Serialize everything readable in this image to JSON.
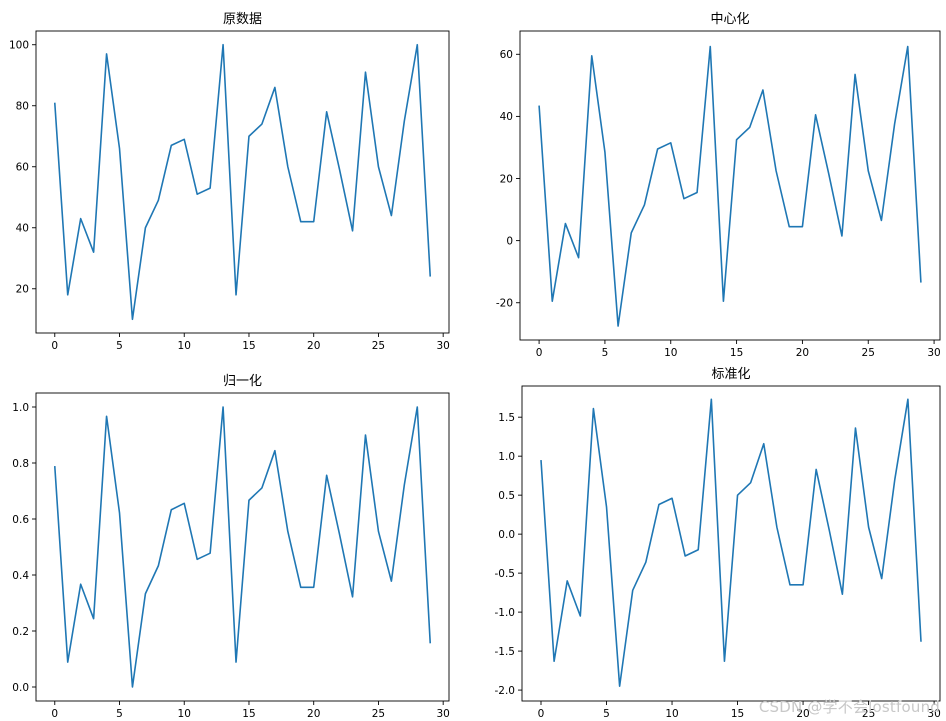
{
  "figure": {
    "background": "#ffffff",
    "line_color": "#1f77b4"
  },
  "watermark": "CSDN @学不会lostfound",
  "chart_data": [
    {
      "type": "line",
      "title": "原数据",
      "xlabel": "",
      "ylabel": "",
      "xlim": [
        -1.45,
        30.45
      ],
      "ylim": [
        5.5,
        104.5
      ],
      "xticks": [
        0,
        5,
        10,
        15,
        20,
        25,
        30
      ],
      "yticks": [
        20,
        40,
        60,
        80,
        100
      ],
      "grid": false,
      "series": [
        {
          "color": "#1f77b4",
          "x": [
            0,
            1,
            2,
            3,
            4,
            5,
            6,
            7,
            8,
            9,
            10,
            11,
            12,
            13,
            14,
            15,
            16,
            17,
            18,
            19,
            20,
            21,
            22,
            23,
            24,
            25,
            26,
            27,
            28,
            29
          ],
          "y": [
            81,
            18,
            43,
            32,
            97,
            66,
            10,
            40,
            49,
            67,
            69,
            51,
            53,
            100,
            18,
            70,
            74,
            86,
            60,
            42,
            42,
            78,
            59,
            39,
            91,
            60,
            44,
            75,
            100,
            24
          ]
        }
      ]
    },
    {
      "type": "line",
      "title": "中心化",
      "xlabel": "",
      "ylabel": "",
      "xlim": [
        -1.45,
        30.45
      ],
      "ylim": [
        -32,
        67.5
      ],
      "xticks": [
        0,
        5,
        10,
        15,
        20,
        25,
        30
      ],
      "yticks": [
        -20,
        0,
        20,
        40,
        60
      ],
      "grid": false,
      "series": [
        {
          "color": "#1f77b4",
          "x": [
            0,
            1,
            2,
            3,
            4,
            5,
            6,
            7,
            8,
            9,
            10,
            11,
            12,
            13,
            14,
            15,
            16,
            17,
            18,
            19,
            20,
            21,
            22,
            23,
            24,
            25,
            26,
            27,
            28,
            29
          ],
          "y": [
            43.5,
            -19.5,
            5.5,
            -5.5,
            59.5,
            28.5,
            -27.5,
            2.5,
            11.5,
            29.5,
            31.5,
            13.5,
            15.5,
            62.5,
            -19.5,
            32.5,
            36.5,
            48.5,
            22.5,
            4.5,
            4.5,
            40.5,
            21.5,
            1.5,
            53.5,
            22.5,
            6.5,
            37.5,
            62.5,
            -13.5
          ]
        }
      ]
    },
    {
      "type": "line",
      "title": "归一化",
      "xlabel": "",
      "ylabel": "",
      "xlim": [
        -1.45,
        30.45
      ],
      "ylim": [
        -0.05,
        1.05
      ],
      "xticks": [
        0,
        5,
        10,
        15,
        20,
        25,
        30
      ],
      "yticks": [
        0.0,
        0.2,
        0.4,
        0.6,
        0.8,
        1.0
      ],
      "grid": false,
      "series": [
        {
          "color": "#1f77b4",
          "x": [
            0,
            1,
            2,
            3,
            4,
            5,
            6,
            7,
            8,
            9,
            10,
            11,
            12,
            13,
            14,
            15,
            16,
            17,
            18,
            19,
            20,
            21,
            22,
            23,
            24,
            25,
            26,
            27,
            28,
            29
          ],
          "y": [
            0.789,
            0.089,
            0.367,
            0.244,
            0.967,
            0.622,
            0.0,
            0.333,
            0.433,
            0.633,
            0.656,
            0.456,
            0.478,
            1.0,
            0.089,
            0.667,
            0.711,
            0.844,
            0.556,
            0.356,
            0.356,
            0.756,
            0.544,
            0.322,
            0.9,
            0.556,
            0.378,
            0.722,
            1.0,
            0.156
          ]
        }
      ]
    },
    {
      "type": "line",
      "title": "标准化",
      "xlabel": "",
      "ylabel": "",
      "xlim": [
        -1.45,
        30.45
      ],
      "ylim": [
        -2.14,
        1.9
      ],
      "xticks": [
        0,
        5,
        10,
        15,
        20,
        25,
        30
      ],
      "yticks": [
        -2.0,
        -1.5,
        -1.0,
        -0.5,
        0.0,
        0.5,
        1.0,
        1.5
      ],
      "grid": false,
      "series": [
        {
          "color": "#1f77b4",
          "x": [
            0,
            1,
            2,
            3,
            4,
            5,
            6,
            7,
            8,
            9,
            10,
            11,
            12,
            13,
            14,
            15,
            16,
            17,
            18,
            19,
            20,
            21,
            22,
            23,
            24,
            25,
            26,
            27,
            28,
            29
          ],
          "y": [
            0.95,
            -1.63,
            -0.6,
            -1.05,
            1.61,
            0.35,
            -1.95,
            -0.72,
            -0.36,
            0.38,
            0.46,
            -0.28,
            -0.2,
            1.73,
            -1.63,
            0.5,
            0.66,
            1.16,
            0.09,
            -0.65,
            -0.65,
            0.83,
            0.05,
            -0.77,
            1.36,
            0.09,
            -0.57,
            0.7,
            1.73,
            -1.38
          ]
        }
      ]
    }
  ]
}
